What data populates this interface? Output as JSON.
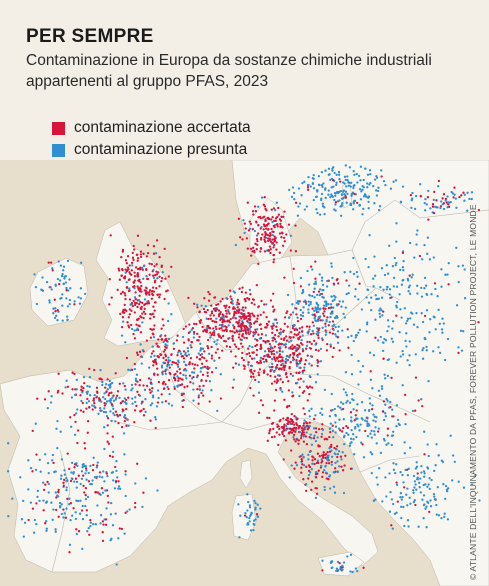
{
  "header": {
    "title": "PER SEMPRE",
    "subtitle": "Contaminazione in Europa da sostanze chimiche industriali appartenenti al gruppo PFAS, 2023"
  },
  "legend": {
    "items": [
      {
        "label": "contaminazione accertata",
        "color": "#d9143a"
      },
      {
        "label": "contaminazione presunta",
        "color": "#2f8fd1"
      }
    ]
  },
  "map": {
    "land_color": "#f7f6f1",
    "sea_color": "#e7decc",
    "border_color": "#bdb6a8"
  },
  "credit": {
    "text": "© ATLANTE DELL'INQUINAMENTO DA PFAS, FOREVER POLLUTION PROJECT, LE MONDE"
  }
}
